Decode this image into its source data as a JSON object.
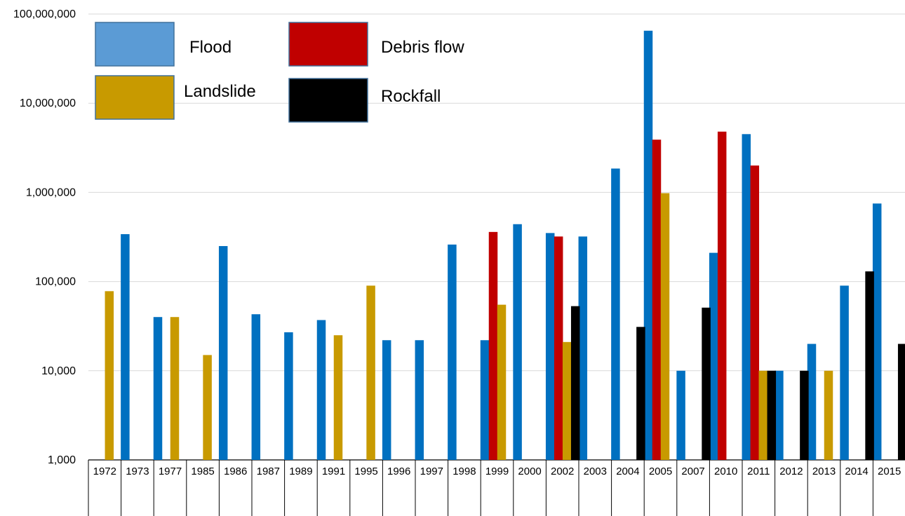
{
  "chart_data": {
    "type": "bar",
    "y_scale": "log",
    "ylim": [
      1000,
      100000000
    ],
    "grid": true,
    "legend_position": "top-left",
    "y_ticks": [
      "1,000",
      "10,000",
      "100,000",
      "1,000,000",
      "10,000,000",
      "100,000,000"
    ],
    "categories": [
      "1972",
      "1973",
      "1977",
      "1985",
      "1986",
      "1987",
      "1989",
      "1991",
      "1995",
      "1996",
      "1997",
      "1998",
      "1999",
      "2000",
      "2002",
      "2003",
      "2004",
      "2005",
      "2007",
      "2010",
      "2011",
      "2012",
      "2013",
      "2014",
      "2015"
    ],
    "series": [
      {
        "name": "Flood",
        "color": "#0070C0",
        "values": [
          null,
          340000,
          40000,
          null,
          250000,
          43000,
          27000,
          37000,
          null,
          22000,
          22000,
          260000,
          22000,
          440000,
          350000,
          320000,
          1850000,
          65000000,
          10000,
          210000,
          4500000,
          10000,
          20000,
          90000,
          750000
        ]
      },
      {
        "name": "Debris flow",
        "color": "#C00000",
        "values": [
          null,
          null,
          null,
          null,
          null,
          null,
          null,
          null,
          null,
          null,
          null,
          null,
          360000,
          null,
          320000,
          null,
          null,
          3900000,
          null,
          4800000,
          2000000,
          null,
          null,
          null,
          null
        ]
      },
      {
        "name": "Landslide",
        "color": "#C89A00",
        "values": [
          78000,
          null,
          40000,
          15000,
          null,
          null,
          null,
          25000,
          90000,
          null,
          null,
          null,
          55000,
          null,
          21000,
          null,
          null,
          980000,
          null,
          null,
          10000,
          null,
          10000,
          null,
          null
        ]
      },
      {
        "name": "Rockfall",
        "color": "#000000",
        "values": [
          null,
          null,
          null,
          null,
          null,
          null,
          null,
          null,
          null,
          null,
          null,
          null,
          null,
          null,
          53000,
          null,
          31000,
          null,
          51000,
          null,
          10000,
          10000,
          null,
          130000,
          20000
        ]
      }
    ]
  }
}
